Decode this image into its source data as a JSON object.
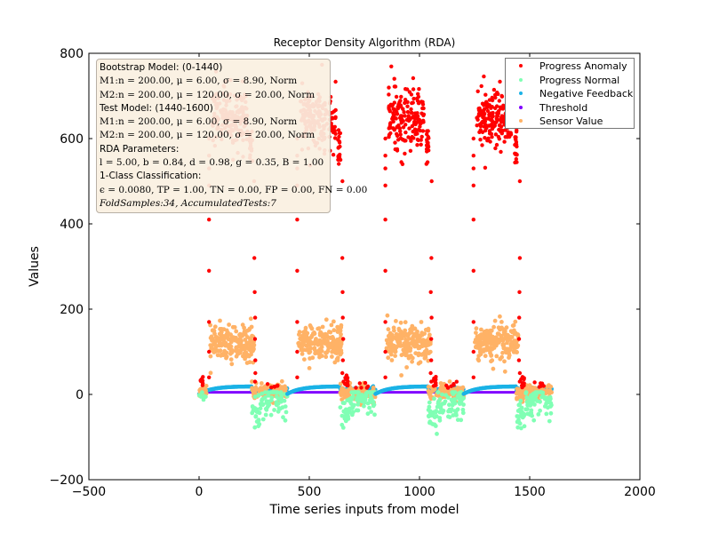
{
  "chart_data": {
    "type": "scatter",
    "title": "Receptor Density Algorithm (RDA)",
    "xlabel": "Time series inputs from model",
    "ylabel": "Values",
    "xlim": [
      -500,
      2000
    ],
    "ylim": [
      -200,
      800
    ],
    "xticks": [
      -500,
      0,
      500,
      1000,
      1500,
      2000
    ],
    "yticks": [
      -200,
      0,
      200,
      400,
      600,
      800
    ],
    "xtick_labels": [
      "−500",
      "0",
      "500",
      "1000",
      "1500",
      "2000"
    ],
    "ytick_labels": [
      "−200",
      "0",
      "200",
      "400",
      "600",
      "800"
    ],
    "grid": false,
    "legend_position": "top-right",
    "cycle_period": 400,
    "cycle_starts": [
      0,
      400,
      800,
      1200
    ],
    "x_end": 1600,
    "series": [
      {
        "name": "Progress Anomaly",
        "color": "#ff0000",
        "high_mean": 650,
        "high_sd": 35,
        "high_range": [
          40,
          240
        ],
        "low_mean": 20,
        "low_range": [
          0,
          20
        ]
      },
      {
        "name": "Progress Normal",
        "color": "#80ffb4",
        "mean": -15,
        "sd": 18,
        "range": [
          240,
          400
        ]
      },
      {
        "name": "Negative Feedback",
        "color": "#1ab2e6",
        "start": 0,
        "plateau": 18,
        "range": [
          0,
          400
        ]
      },
      {
        "name": "Threshold",
        "color": "#8000ff",
        "value": 5
      },
      {
        "name": "Sensor Value",
        "color": "#ffb266",
        "high_mean": 120,
        "high_sd": 20,
        "high_range": [
          40,
          240
        ],
        "low_mean": 6,
        "low_sd": 8.9,
        "low_range": [
          240,
          400
        ]
      }
    ]
  },
  "info_box": {
    "lines": [
      {
        "text": "Bootstrap Model: (0-1440)",
        "style": "sans"
      },
      {
        "text": "M1:n = 200.00, μ = 6.00, σ = 8.90, Norm",
        "style": "math"
      },
      {
        "text": "M2:n = 200.00, μ = 120.00, σ = 20.00, Norm",
        "style": "math"
      },
      {
        "text": "Test Model: (1440-1600)",
        "style": "sans"
      },
      {
        "text": "M1:n = 200.00, μ = 6.00, σ = 8.90, Norm",
        "style": "math"
      },
      {
        "text": "M2:n = 200.00, μ = 120.00, σ = 20.00, Norm",
        "style": "math"
      },
      {
        "text": "RDA Parameters:",
        "style": "sans"
      },
      {
        "text": "l = 5.00, b = 0.84, d = 0.98, g = 0.35, B = 1.00",
        "style": "math"
      },
      {
        "text": "1-Class Classification:",
        "style": "sans"
      },
      {
        "text": "ϵ = 0.0080, TP = 1.00, TN = 0.00, FP = 0.00, FN = 0.00",
        "style": "math"
      },
      {
        "text": "FoldSamples:34, AccumulatedTests:7",
        "style": "ital"
      }
    ]
  },
  "legend": {
    "items": [
      {
        "label": "Progress Anomaly",
        "color": "#ff0000"
      },
      {
        "label": "Progress Normal",
        "color": "#80ffb4"
      },
      {
        "label": "Negative Feedback",
        "color": "#1ab2e6"
      },
      {
        "label": "Threshold",
        "color": "#8000ff"
      },
      {
        "label": "Sensor Value",
        "color": "#ffb266"
      }
    ]
  }
}
